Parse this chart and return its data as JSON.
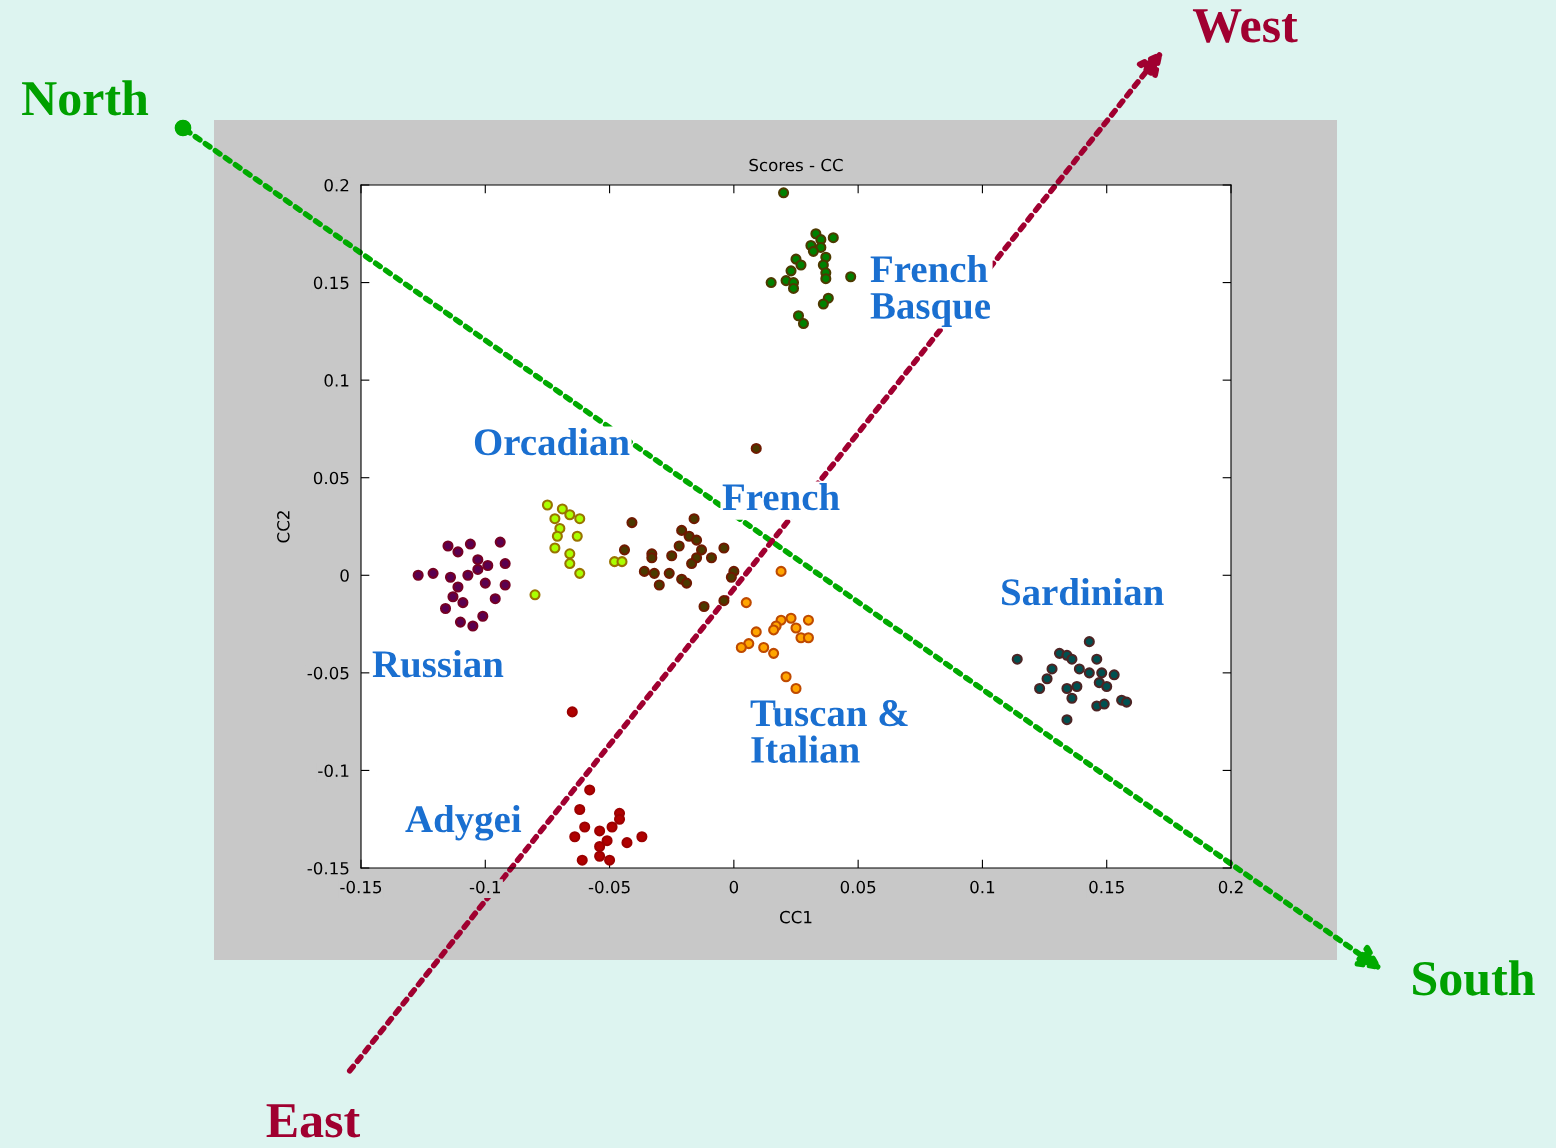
{
  "chart_data": {
    "type": "scatter",
    "title": "Scores - CC",
    "xlabel": "CC1",
    "ylabel": "CC2",
    "xlim": [
      -0.15,
      0.2
    ],
    "ylim": [
      -0.15,
      0.2
    ],
    "xticks": [
      -0.15,
      -0.1,
      -0.05,
      0,
      0.05,
      0.1,
      0.15,
      0.2
    ],
    "yticks": [
      -0.15,
      -0.1,
      -0.05,
      0,
      0.05,
      0.1,
      0.15,
      0.2
    ],
    "grid": false,
    "legend": false,
    "marker": "circle",
    "annotations": [
      "North",
      "South",
      "East",
      "West"
    ],
    "series": [
      {
        "name": "French\nBasque",
        "color": "#008000",
        "x": [
          0.02,
          0.033,
          0.035,
          0.04,
          0.031,
          0.035,
          0.032,
          0.037,
          0.025,
          0.027,
          0.036,
          0.023,
          0.037,
          0.047,
          0.015,
          0.021,
          0.024,
          0.037,
          0.024,
          0.038,
          0.036,
          0.026,
          0.028
        ],
        "values": [
          0.196,
          0.175,
          0.172,
          0.173,
          0.169,
          0.168,
          0.166,
          0.163,
          0.162,
          0.159,
          0.159,
          0.156,
          0.155,
          0.153,
          0.15,
          0.151,
          0.15,
          0.152,
          0.147,
          0.142,
          0.139,
          0.133,
          0.129
        ]
      },
      {
        "name": "Orcadian",
        "color": "#aaff00",
        "x": [
          -0.075,
          -0.069,
          -0.066,
          -0.062,
          -0.072,
          -0.07,
          -0.063,
          -0.071,
          -0.072,
          -0.066,
          -0.066,
          -0.062,
          -0.08,
          -0.048,
          -0.045
        ],
        "values": [
          0.036,
          0.034,
          0.031,
          0.029,
          0.029,
          0.024,
          0.02,
          0.02,
          0.014,
          0.011,
          0.006,
          0.001,
          -0.01,
          0.007,
          0.007
        ]
      },
      {
        "name": "French",
        "color": "#4a3a00",
        "x": [
          0.009,
          -0.041,
          -0.016,
          -0.044,
          -0.021,
          -0.018,
          -0.015,
          -0.022,
          -0.013,
          -0.004,
          -0.033,
          -0.033,
          -0.025,
          -0.015,
          -0.009,
          -0.017,
          -0.036,
          -0.032,
          -0.026,
          -0.03,
          -0.021,
          -0.019,
          0.0,
          -0.001,
          -0.004,
          -0.012
        ],
        "values": [
          0.065,
          0.027,
          0.029,
          0.013,
          0.023,
          0.02,
          0.018,
          0.015,
          0.013,
          0.014,
          0.011,
          0.009,
          0.01,
          0.009,
          0.009,
          0.006,
          0.002,
          0.001,
          0.001,
          -0.005,
          -0.002,
          -0.004,
          0.002,
          -0.001,
          -0.013,
          -0.016
        ]
      },
      {
        "name": "Sardinian",
        "color": "#005050",
        "x": [
          0.143,
          0.114,
          0.131,
          0.134,
          0.136,
          0.146,
          0.128,
          0.139,
          0.143,
          0.148,
          0.153,
          0.126,
          0.147,
          0.15,
          0.123,
          0.134,
          0.138,
          0.136,
          0.146,
          0.149,
          0.156,
          0.158,
          0.134
        ],
        "values": [
          -0.034,
          -0.043,
          -0.04,
          -0.041,
          -0.043,
          -0.043,
          -0.048,
          -0.048,
          -0.05,
          -0.05,
          -0.051,
          -0.053,
          -0.055,
          -0.057,
          -0.058,
          -0.058,
          -0.057,
          -0.063,
          -0.067,
          -0.066,
          -0.064,
          -0.065,
          -0.074
        ]
      },
      {
        "name": "Russian",
        "color": "#5a0050",
        "x": [
          -0.115,
          -0.111,
          -0.106,
          -0.094,
          -0.103,
          -0.103,
          -0.099,
          -0.092,
          -0.127,
          -0.121,
          -0.114,
          -0.107,
          -0.1,
          -0.092,
          -0.111,
          -0.113,
          -0.109,
          -0.096,
          -0.116,
          -0.11,
          -0.101,
          -0.105
        ],
        "values": [
          0.015,
          0.012,
          0.016,
          0.017,
          0.008,
          0.003,
          0.005,
          0.006,
          0.0,
          0.001,
          -0.001,
          0.0,
          -0.004,
          -0.005,
          -0.006,
          -0.011,
          -0.014,
          -0.012,
          -0.017,
          -0.024,
          -0.021,
          -0.026
        ]
      },
      {
        "name": "Tuscan &\nItalian",
        "color": "#ffa500",
        "x": [
          0.019,
          0.005,
          0.023,
          0.03,
          0.019,
          0.017,
          0.025,
          0.016,
          0.009,
          0.027,
          0.03,
          0.006,
          0.003,
          0.012,
          0.016,
          0.021,
          0.025
        ],
        "values": [
          0.002,
          -0.014,
          -0.022,
          -0.023,
          -0.023,
          -0.026,
          -0.027,
          -0.028,
          -0.029,
          -0.032,
          -0.032,
          -0.035,
          -0.037,
          -0.037,
          -0.04,
          -0.052,
          -0.058
        ]
      },
      {
        "name": "Adygei",
        "color": "#b00000",
        "x": [
          -0.065,
          -0.058,
          -0.062,
          -0.046,
          -0.046,
          -0.06,
          -0.049,
          -0.064,
          -0.054,
          -0.037,
          -0.051,
          -0.043,
          -0.054,
          -0.054,
          -0.061,
          -0.05
        ],
        "values": [
          -0.07,
          -0.11,
          -0.12,
          -0.122,
          -0.125,
          -0.129,
          -0.129,
          -0.134,
          -0.131,
          -0.134,
          -0.136,
          -0.137,
          -0.139,
          -0.144,
          -0.146,
          -0.146
        ]
      }
    ]
  }
}
